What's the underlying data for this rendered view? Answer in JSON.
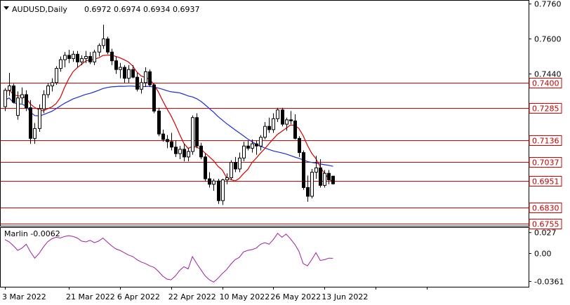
{
  "header": {
    "symbol_timeframe": "AUDUSD,Daily",
    "ohlc": "0.6972 0.6974 0.6934 0.6937"
  },
  "indicator": {
    "name_value": "Marlin -0.0062",
    "ticks": [
      "0.027",
      "0.00",
      "-0.0361"
    ],
    "color": "#a020a0"
  },
  "colors": {
    "bull": "#ffffff",
    "bear": "#000000",
    "level": "#d40000",
    "ma_fast": "#d40000",
    "ma_slow": "#1a2fd0",
    "marlin": "#a020a0"
  },
  "chart_data": [
    {
      "type": "candlestick",
      "title": "AUDUSD,Daily",
      "ohlc_last": [
        0.6972,
        0.6974,
        0.6934,
        0.6937
      ],
      "ylim": [
        0.6745,
        0.7775
      ],
      "y_ticks": [
        "0.7760",
        "0.7600",
        "0.7440"
      ],
      "x_tick_labels": [
        "3 Mar 2022",
        "21 Mar 2022",
        "6 Apr 2022",
        "22 Apr 2022",
        "10 May 2022",
        "26 May 2022",
        "13 Jun 2022"
      ],
      "levels": [
        {
          "value": 0.74,
          "label": "0.7400"
        },
        {
          "value": 0.7285,
          "label": "0.7285"
        },
        {
          "value": 0.7136,
          "label": "0.7136"
        },
        {
          "value": 0.7037,
          "label": "0.7037"
        },
        {
          "value": 0.6951,
          "label": "0.6951"
        },
        {
          "value": 0.683,
          "label": "0.6830"
        },
        {
          "value": 0.6755,
          "label": "0.6755"
        }
      ],
      "candles": [
        [
          0.729,
          0.7375,
          0.727,
          0.7365
        ],
        [
          0.7365,
          0.7445,
          0.734,
          0.7385
        ],
        [
          0.7385,
          0.7395,
          0.7305,
          0.731
        ],
        [
          0.725,
          0.736,
          0.723,
          0.733
        ],
        [
          0.733,
          0.7378,
          0.7305,
          0.7345
        ],
        [
          0.7345,
          0.7365,
          0.727,
          0.7285
        ],
        [
          0.7285,
          0.732,
          0.712,
          0.7145
        ],
        [
          0.7145,
          0.7215,
          0.712,
          0.719
        ],
        [
          0.719,
          0.73,
          0.7175,
          0.728
        ],
        [
          0.728,
          0.7365,
          0.726,
          0.7345
        ],
        [
          0.7345,
          0.74,
          0.733,
          0.7385
        ],
        [
          0.7385,
          0.742,
          0.736,
          0.74
        ],
        [
          0.74,
          0.7475,
          0.739,
          0.7465
        ],
        [
          0.7465,
          0.752,
          0.745,
          0.7505
        ],
        [
          0.7505,
          0.754,
          0.747,
          0.7525
        ],
        [
          0.7525,
          0.755,
          0.749,
          0.751
        ],
        [
          0.751,
          0.7545,
          0.7495,
          0.753
        ],
        [
          0.753,
          0.7545,
          0.747,
          0.7495
        ],
        [
          0.7495,
          0.7525,
          0.748,
          0.751
        ],
        [
          0.751,
          0.7545,
          0.749,
          0.752
        ],
        [
          0.752,
          0.754,
          0.7485,
          0.7495
        ],
        [
          0.7495,
          0.755,
          0.748,
          0.754
        ],
        [
          0.754,
          0.758,
          0.752,
          0.757
        ],
        [
          0.757,
          0.7665,
          0.7555,
          0.76
        ],
        [
          0.76,
          0.761,
          0.753,
          0.754
        ],
        [
          0.754,
          0.7555,
          0.748,
          0.75
        ],
        [
          0.75,
          0.752,
          0.744,
          0.746
        ],
        [
          0.746,
          0.749,
          0.742,
          0.747
        ],
        [
          0.747,
          0.748,
          0.74,
          0.742
        ],
        [
          0.742,
          0.748,
          0.74,
          0.746
        ],
        [
          0.746,
          0.748,
          0.742,
          0.7425
        ],
        [
          0.7425,
          0.7445,
          0.736,
          0.737
        ],
        [
          0.737,
          0.742,
          0.735,
          0.74
        ],
        [
          0.74,
          0.747,
          0.738,
          0.745
        ],
        [
          0.745,
          0.746,
          0.738,
          0.739
        ],
        [
          0.739,
          0.7395,
          0.726,
          0.727
        ],
        [
          0.727,
          0.7285,
          0.7155,
          0.7165
        ],
        [
          0.7165,
          0.7185,
          0.713,
          0.714
        ],
        [
          0.714,
          0.716,
          0.71,
          0.713
        ],
        [
          0.713,
          0.717,
          0.709,
          0.7105
        ],
        [
          0.7105,
          0.7135,
          0.706,
          0.7075
        ],
        [
          0.7075,
          0.711,
          0.705,
          0.7095
        ],
        [
          0.7095,
          0.712,
          0.704,
          0.706
        ],
        [
          0.706,
          0.71,
          0.704,
          0.7085
        ],
        [
          0.7085,
          0.725,
          0.707,
          0.724
        ],
        [
          0.724,
          0.726,
          0.71,
          0.711
        ],
        [
          0.711,
          0.7125,
          0.705,
          0.706
        ],
        [
          0.706,
          0.7075,
          0.695,
          0.696
        ],
        [
          0.696,
          0.699,
          0.692,
          0.6935
        ],
        [
          0.6935,
          0.696,
          0.6905,
          0.695
        ],
        [
          0.695,
          0.696,
          0.6845,
          0.686
        ],
        [
          0.686,
          0.696,
          0.684,
          0.6955
        ],
        [
          0.6955,
          0.6985,
          0.6935,
          0.6965
        ],
        [
          0.6965,
          0.7045,
          0.6955,
          0.7035
        ],
        [
          0.7035,
          0.706,
          0.699,
          0.7005
        ],
        [
          0.7005,
          0.708,
          0.699,
          0.7055
        ],
        [
          0.7055,
          0.713,
          0.704,
          0.711
        ],
        [
          0.711,
          0.7135,
          0.709,
          0.71
        ],
        [
          0.71,
          0.714,
          0.708,
          0.712
        ],
        [
          0.712,
          0.7135,
          0.707,
          0.711
        ],
        [
          0.711,
          0.716,
          0.709,
          0.715
        ],
        [
          0.715,
          0.722,
          0.714,
          0.72
        ],
        [
          0.72,
          0.724,
          0.717,
          0.7185
        ],
        [
          0.7185,
          0.726,
          0.717,
          0.7235
        ],
        [
          0.7235,
          0.7285,
          0.722,
          0.7275
        ],
        [
          0.7275,
          0.7285,
          0.72,
          0.721
        ],
        [
          0.721,
          0.724,
          0.718,
          0.723
        ],
        [
          0.723,
          0.727,
          0.721,
          0.7225
        ],
        [
          0.7225,
          0.7255,
          0.714,
          0.7145
        ],
        [
          0.7145,
          0.7155,
          0.706,
          0.708
        ],
        [
          0.708,
          0.709,
          0.691,
          0.692
        ],
        [
          0.692,
          0.6975,
          0.6855,
          0.688
        ],
        [
          0.688,
          0.7005,
          0.687,
          0.699
        ],
        [
          0.699,
          0.7065,
          0.696,
          0.701
        ],
        [
          0.701,
          0.705,
          0.692,
          0.693
        ],
        [
          0.693,
          0.7,
          0.692,
          0.6985
        ],
        [
          0.6985,
          0.7,
          0.6935,
          0.6955
        ],
        [
          0.6972,
          0.6974,
          0.6934,
          0.6937
        ]
      ]
    },
    {
      "type": "line",
      "title": "Marlin -0.0062",
      "ylim": [
        -0.043,
        0.034
      ],
      "y_ticks": [
        "0.027",
        "0.00",
        "-0.0361"
      ],
      "values": [
        0.018,
        0.015,
        0.01,
        0.004,
        0.007,
        0.012,
        0.002,
        -0.006,
        0.0,
        0.008,
        0.015,
        0.019,
        0.021,
        0.02,
        0.022,
        0.023,
        0.022,
        0.02,
        0.016,
        0.015,
        0.017,
        0.014,
        0.016,
        0.02,
        0.015,
        0.01,
        0.006,
        0.004,
        0.001,
        -0.002,
        -0.004,
        -0.008,
        -0.011,
        -0.013,
        -0.016,
        -0.018,
        -0.023,
        -0.029,
        -0.033,
        -0.034,
        -0.029,
        -0.022,
        -0.017,
        -0.02,
        -0.004,
        -0.013,
        -0.021,
        -0.029,
        -0.034,
        -0.037,
        -0.032,
        -0.026,
        -0.021,
        -0.014,
        -0.008,
        -0.005,
        0.002,
        0.004,
        0.005,
        0.007,
        0.012,
        0.014,
        0.012,
        0.018,
        0.026,
        0.021,
        0.025,
        0.019,
        0.012,
        0.003,
        -0.013,
        -0.016,
        -0.008,
        0.001,
        -0.009,
        -0.008,
        -0.006,
        -0.0062
      ]
    }
  ]
}
